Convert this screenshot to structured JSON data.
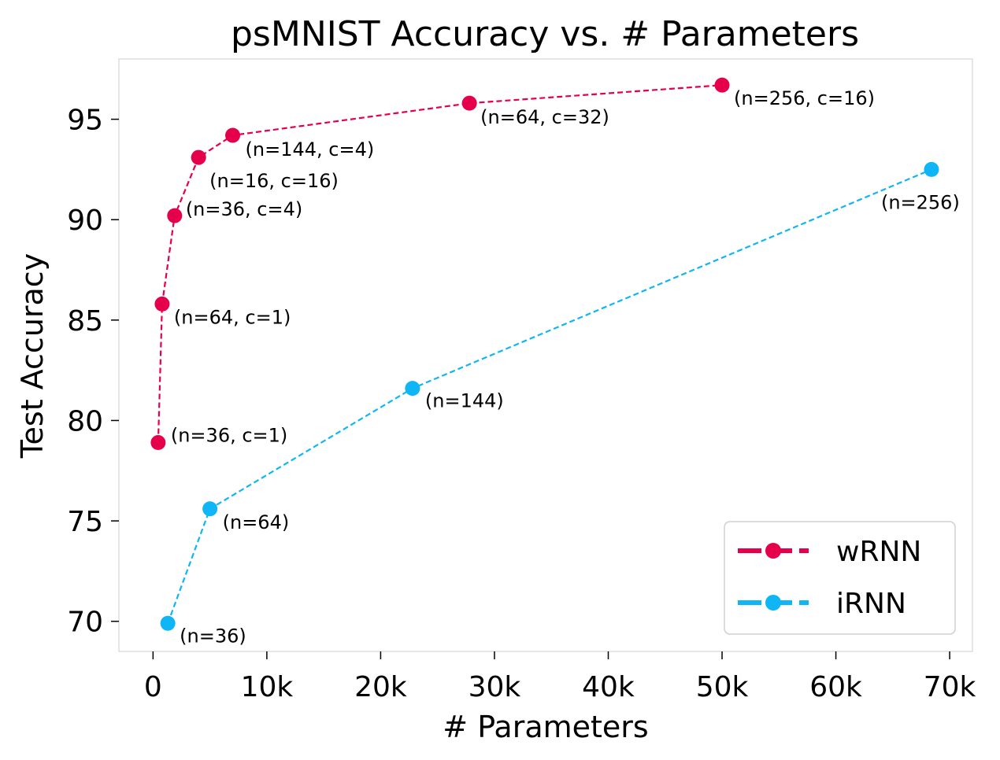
{
  "chart_data": {
    "type": "line",
    "title": "psMNIST Accuracy vs. # Parameters",
    "xlabel": "# Parameters",
    "ylabel": "Test Accuracy",
    "xlim": [
      -3000,
      72000
    ],
    "ylim": [
      68.5,
      98.0
    ],
    "xticks": [
      0,
      10000,
      20000,
      30000,
      40000,
      50000,
      60000,
      70000
    ],
    "xtick_labels": [
      "0",
      "10k",
      "20k",
      "30k",
      "40k",
      "50k",
      "60k",
      "70k"
    ],
    "yticks": [
      70,
      75,
      80,
      85,
      90,
      95
    ],
    "ytick_labels": [
      "70",
      "75",
      "80",
      "85",
      "90",
      "95"
    ],
    "grid": false,
    "legend_position": "bottom-right",
    "series": [
      {
        "name": "wRNN",
        "color": "#e6004c",
        "line_style": "dashed",
        "marker": "circle",
        "points": [
          {
            "x": 450,
            "y": 78.9,
            "label": "(n=36, c=1)"
          },
          {
            "x": 800,
            "y": 85.8,
            "label": "(n=64, c=1)"
          },
          {
            "x": 1900,
            "y": 90.2,
            "label": "(n=36, c=4)"
          },
          {
            "x": 4000,
            "y": 93.1,
            "label": "(n=16, c=16)"
          },
          {
            "x": 7000,
            "y": 94.2,
            "label": "(n=144, c=4)"
          },
          {
            "x": 27800,
            "y": 95.8,
            "label": "(n=64, c=32)"
          },
          {
            "x": 50000,
            "y": 96.7,
            "label": "(n=256, c=16)"
          }
        ]
      },
      {
        "name": "iRNN",
        "color": "#0fb5f5",
        "line_style": "dashed",
        "marker": "circle",
        "points": [
          {
            "x": 1300,
            "y": 69.9,
            "label": "(n=36)"
          },
          {
            "x": 5000,
            "y": 75.6,
            "label": "(n=64)"
          },
          {
            "x": 22800,
            "y": 81.6,
            "label": "(n=144)"
          },
          {
            "x": 68400,
            "y": 92.5,
            "label": "(n=256)"
          }
        ]
      }
    ]
  }
}
